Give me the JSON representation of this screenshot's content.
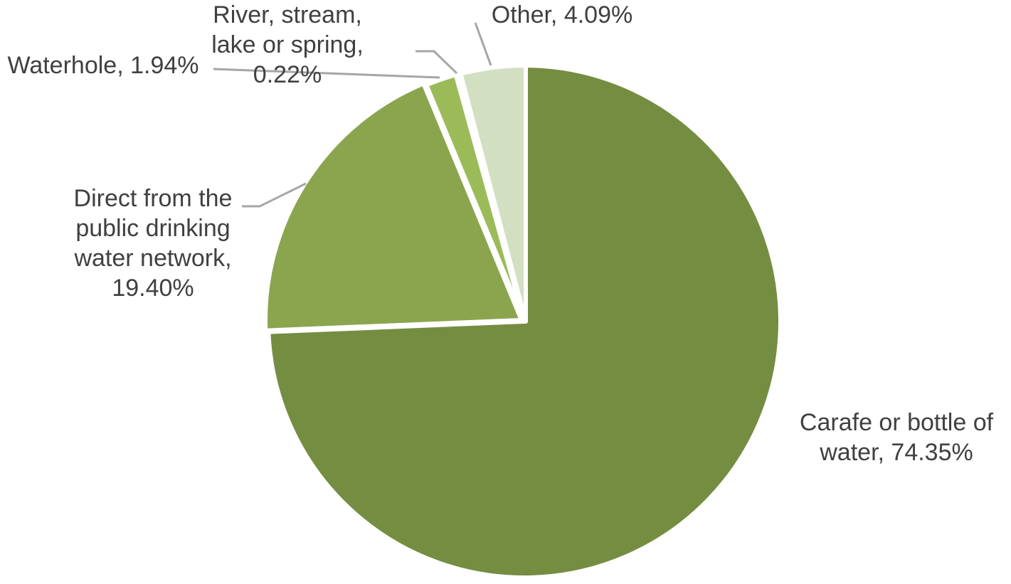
{
  "chart_data": {
    "type": "pie",
    "title": "",
    "start": "12 o'clock",
    "direction": "clockwise",
    "legend": "none",
    "slices": [
      {
        "category": "Carafe or bottle of water",
        "value": 74.35,
        "label_lines": [
          "Carafe or bottle of",
          "water, 74.35%"
        ],
        "color": "#758d41"
      },
      {
        "category": "Direct from the public drinking water network",
        "value": 19.4,
        "label_lines": [
          "Direct from the",
          "public drinking",
          "water network,",
          "19.40%"
        ],
        "color": "#8ba54e"
      },
      {
        "category": "Waterhole",
        "value": 1.94,
        "label_lines": [
          "Waterhole, 1.94%"
        ],
        "color": "#9bbb59"
      },
      {
        "category": "River, stream, lake or spring",
        "value": 0.22,
        "label_lines": [
          "River, stream,",
          "lake or spring,",
          "0.22%"
        ],
        "color": "#c3d69b"
      },
      {
        "category": "Other",
        "value": 4.09,
        "label_lines": [
          "Other, 4.09%"
        ],
        "color": "#d2dfc1"
      }
    ]
  }
}
